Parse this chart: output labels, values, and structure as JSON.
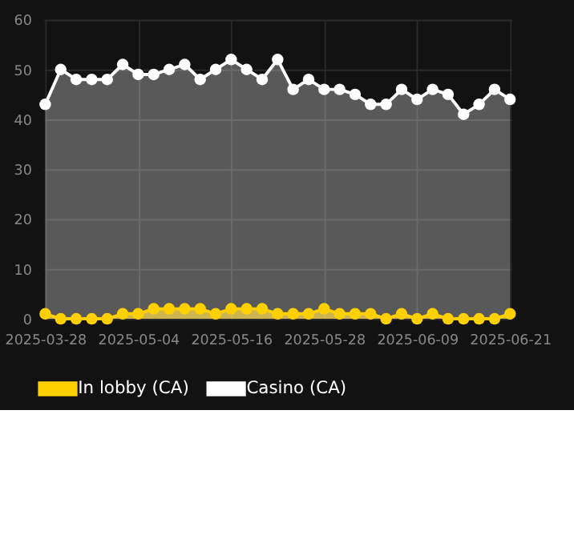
{
  "chart_data": {
    "type": "area",
    "categories": [
      "2025-03-28",
      null,
      null,
      null,
      null,
      null,
      "2025-05-04",
      null,
      null,
      null,
      null,
      null,
      "2025-05-16",
      null,
      null,
      null,
      null,
      null,
      "2025-05-28",
      null,
      null,
      null,
      null,
      null,
      "2025-06-09",
      null,
      null,
      null,
      null,
      null,
      "2025-06-21"
    ],
    "series": [
      {
        "name": "In lobby (CA)",
        "color": "#ffd000",
        "values": [
          1,
          0,
          0,
          0,
          0,
          1,
          1,
          2,
          2,
          2,
          2,
          1,
          2,
          2,
          2,
          1,
          1,
          1,
          2,
          1,
          1,
          1,
          0,
          1,
          0,
          1,
          0,
          0,
          0,
          0,
          1
        ]
      },
      {
        "name": "Casino (CA)",
        "color": "#ffffff",
        "values": [
          43,
          50,
          48,
          48,
          48,
          51,
          49,
          49,
          50,
          51,
          48,
          50,
          52,
          50,
          48,
          52,
          46,
          48,
          46,
          46,
          45,
          43,
          43,
          46,
          44,
          46,
          45,
          41,
          43,
          46,
          44
        ]
      }
    ],
    "ylim": [
      0,
      60
    ],
    "yticks": [
      0,
      10,
      20,
      30,
      40,
      50,
      60
    ],
    "grid": true,
    "legend": "bottom",
    "marker": "circle"
  }
}
